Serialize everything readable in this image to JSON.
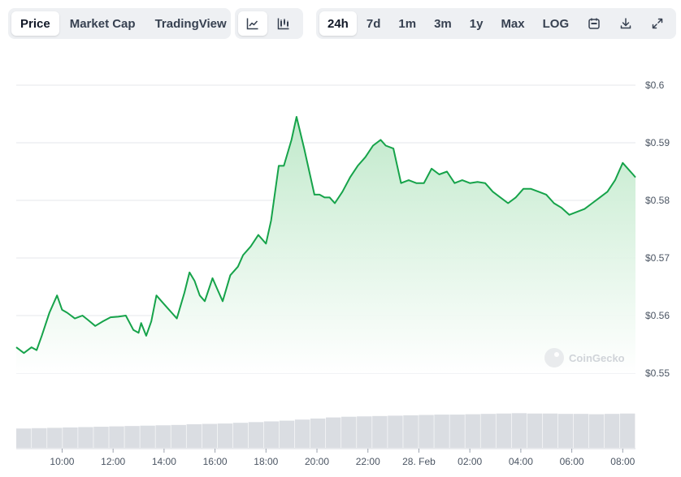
{
  "toolbar": {
    "view_tabs": [
      "Price",
      "Market Cap",
      "TradingView"
    ],
    "active_view": "Price",
    "chart_types": [
      "line-chart-icon",
      "candlestick-icon"
    ],
    "active_chart_type": "line-chart-icon",
    "ranges": [
      "24h",
      "7d",
      "1m",
      "3m",
      "1y",
      "Max",
      "LOG"
    ],
    "active_range": "24h",
    "tools": [
      "calendar-icon",
      "download-icon",
      "expand-icon"
    ]
  },
  "watermark": "CoinGecko",
  "colors": {
    "line": "#16a34a",
    "fill_top": "#bde8c8",
    "volume": "#dadde2",
    "grid": "#e5e7eb"
  },
  "chart_data": {
    "type": "area",
    "title": "",
    "xlabel": "",
    "ylabel": "",
    "ylim": [
      0.548,
      0.6
    ],
    "y_ticks": [
      0.6,
      0.59,
      0.58,
      0.57,
      0.56,
      0.55
    ],
    "y_tick_labels": [
      "$0.6",
      "$0.59",
      "$0.58",
      "$0.57",
      "$0.56",
      "$0.55"
    ],
    "x_ticks": [
      10,
      12,
      14,
      16,
      18,
      20,
      22,
      24,
      26,
      28,
      30,
      32
    ],
    "x_tick_labels": [
      "10:00",
      "12:00",
      "14:00",
      "16:00",
      "18:00",
      "20:00",
      "22:00",
      "28. Feb",
      "02:00",
      "04:00",
      "06:00",
      "08:00"
    ],
    "grid": true,
    "series": [
      {
        "x": [
          8.2,
          8.5,
          8.8,
          9.0,
          9.2,
          9.5,
          9.8,
          10.0,
          10.2,
          10.5,
          10.8,
          11.0,
          11.3,
          11.6,
          11.9,
          12.2,
          12.5,
          12.8,
          13.0,
          13.1,
          13.3,
          13.5,
          13.7,
          13.9,
          14.1,
          14.3,
          14.5,
          14.8,
          15.0,
          15.2,
          15.4,
          15.6,
          15.9,
          16.1,
          16.3,
          16.6,
          16.9,
          17.1,
          17.4,
          17.7,
          18.0,
          18.2,
          18.5,
          18.7,
          19.0,
          19.2,
          19.5,
          19.7,
          19.9,
          20.1,
          20.3,
          20.5,
          20.7,
          21.0,
          21.3,
          21.6,
          21.9,
          22.2,
          22.5,
          22.7,
          23.0,
          23.3,
          23.6,
          23.9,
          24.2,
          24.5,
          24.8,
          25.1,
          25.4,
          25.7,
          26.0,
          26.3,
          26.6,
          26.9,
          27.2,
          27.5,
          27.8,
          28.1,
          28.4,
          28.7,
          29.0,
          29.3,
          29.6,
          29.9,
          30.2,
          30.5,
          30.8,
          31.1,
          31.4,
          31.7,
          32.0,
          32.2,
          32.4,
          32.5
        ],
        "y": [
          0.5545,
          0.5535,
          0.5545,
          0.554,
          0.5565,
          0.5605,
          0.5635,
          0.561,
          0.5605,
          0.5595,
          0.56,
          0.5593,
          0.5582,
          0.559,
          0.5597,
          0.5598,
          0.56,
          0.5575,
          0.557,
          0.5587,
          0.5565,
          0.559,
          0.5635,
          0.5625,
          0.5615,
          0.5605,
          0.5595,
          0.564,
          0.5675,
          0.566,
          0.5635,
          0.5625,
          0.5665,
          0.5645,
          0.5625,
          0.567,
          0.5685,
          0.5705,
          0.572,
          0.574,
          0.5725,
          0.5765,
          0.586,
          0.586,
          0.5905,
          0.5945,
          0.589,
          0.585,
          0.581,
          0.581,
          0.5805,
          0.5805,
          0.5795,
          0.5815,
          0.584,
          0.586,
          0.5875,
          0.5895,
          0.5905,
          0.5895,
          0.589,
          0.583,
          0.5835,
          0.583,
          0.583,
          0.5855,
          0.5845,
          0.585,
          0.583,
          0.5835,
          0.583,
          0.5832,
          0.583,
          0.5815,
          0.5805,
          0.5795,
          0.5805,
          0.582,
          0.582,
          0.5815,
          0.581,
          0.5795,
          0.5787,
          0.5775,
          0.578,
          0.5785,
          0.5795,
          0.5805,
          0.5815,
          0.5835,
          0.5865,
          0.5855,
          0.5845,
          0.584
        ]
      }
    ],
    "volume": {
      "x_start": 8.2,
      "x_end": 32.5,
      "values": [
        0.54,
        0.55,
        0.56,
        0.57,
        0.58,
        0.59,
        0.6,
        0.61,
        0.62,
        0.63,
        0.64,
        0.66,
        0.67,
        0.68,
        0.7,
        0.72,
        0.74,
        0.76,
        0.79,
        0.82,
        0.85,
        0.87,
        0.88,
        0.89,
        0.9,
        0.91,
        0.92,
        0.93,
        0.93,
        0.94,
        0.95,
        0.96,
        0.97,
        0.96,
        0.96,
        0.95,
        0.95,
        0.94,
        0.95,
        0.96
      ]
    }
  }
}
